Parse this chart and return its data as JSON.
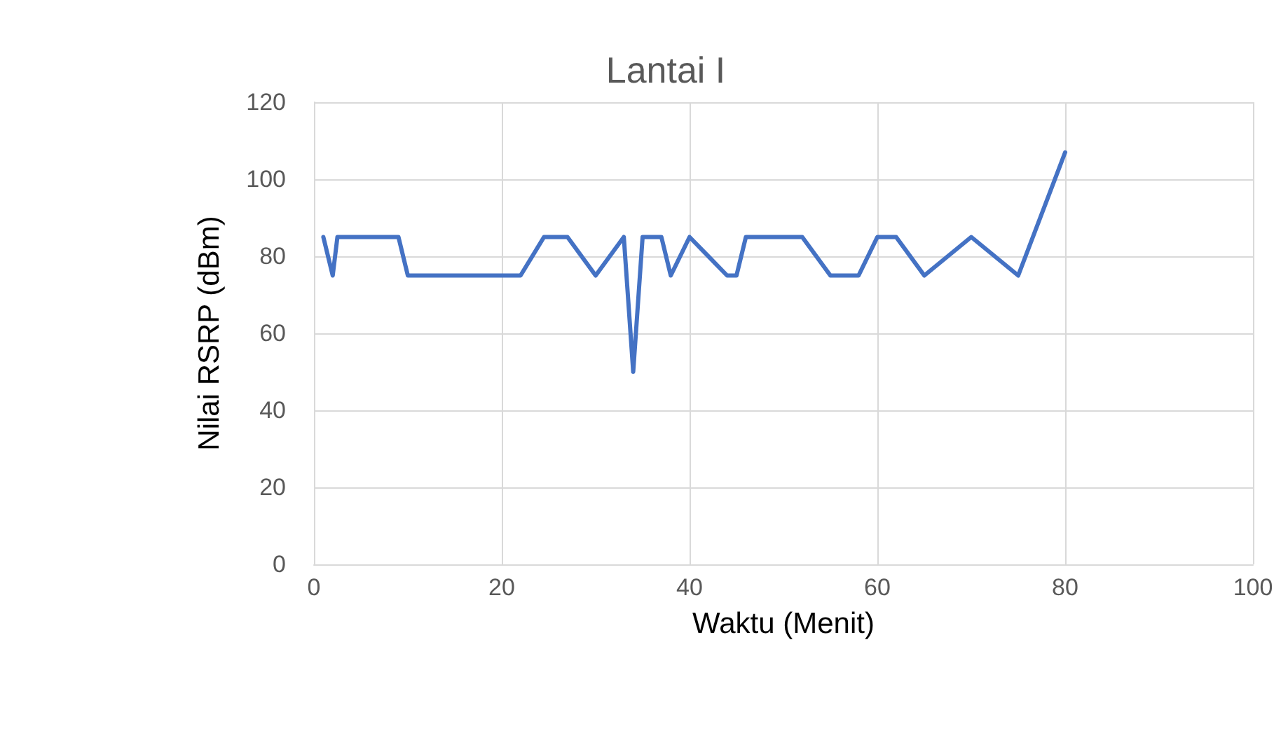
{
  "chart_data": {
    "type": "line",
    "title": "Lantai I",
    "xlabel": "Waktu (Menit)",
    "ylabel": "Nilai RSRP (dBm)",
    "x": [
      1,
      2,
      2.5,
      9,
      10,
      22,
      24.5,
      27,
      30,
      33,
      34,
      35,
      37,
      38,
      40,
      44,
      45,
      46,
      52,
      55,
      58,
      60,
      62,
      65,
      70,
      75,
      80
    ],
    "series": [
      {
        "color": "#4472c4",
        "values": [
          85,
          75,
          85,
          85,
          75,
          75,
          85,
          85,
          75,
          85,
          50,
          85,
          85,
          75,
          85,
          75,
          75,
          85,
          85,
          75,
          75,
          85,
          85,
          75,
          85,
          75,
          107
        ]
      }
    ],
    "xlim": [
      0,
      100
    ],
    "xticks": [
      0,
      20,
      40,
      60,
      80,
      100
    ],
    "ylim": [
      0,
      120
    ],
    "yticks": [
      0,
      20,
      40,
      60,
      80,
      100,
      120
    ],
    "grid": true,
    "marker": "none",
    "line_style": "solid"
  }
}
